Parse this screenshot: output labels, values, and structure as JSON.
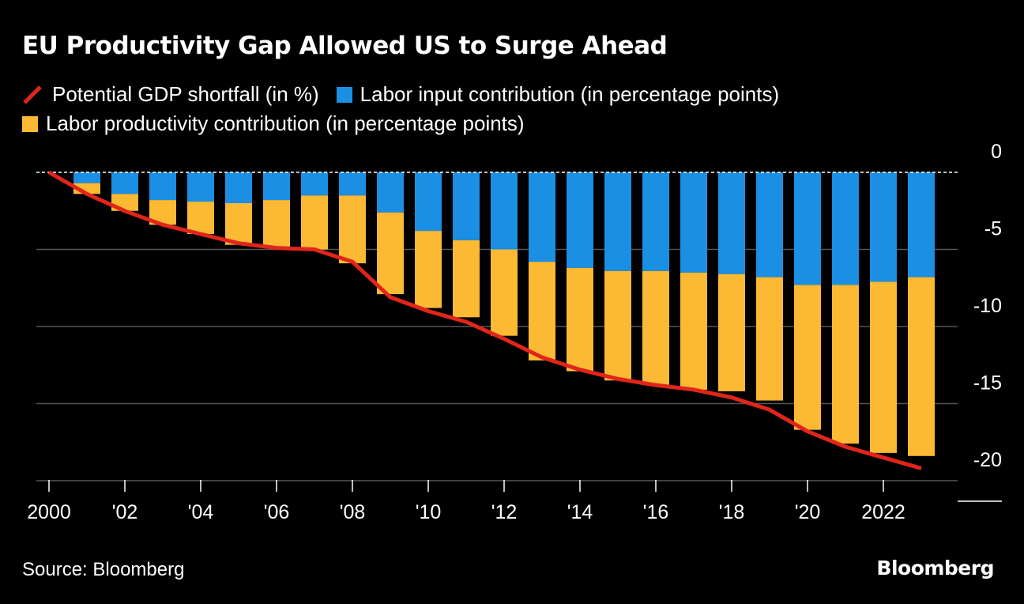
{
  "title": "EU Productivity Gap Allowed US to Surge Ahead",
  "legend": {
    "line": "Potential GDP shortfall (in %)",
    "blue": "Labor input contribution (in percentage points)",
    "yellow": "Labor productivity contribution (in percentage points)"
  },
  "source": "Source: Bloomberg",
  "brand": "Bloomberg",
  "colors": {
    "background": "#000000",
    "blue": "#1a8fe3",
    "yellow": "#fbb934",
    "line": "#e1251b",
    "grid": "#555555",
    "text": "#ffffff"
  },
  "chart_data": {
    "type": "bar",
    "stacked": true,
    "title": "EU Productivity Gap Allowed US to Surge Ahead",
    "x": [
      2000,
      2001,
      2002,
      2003,
      2004,
      2005,
      2006,
      2007,
      2008,
      2009,
      2010,
      2011,
      2012,
      2013,
      2014,
      2015,
      2016,
      2017,
      2018,
      2019,
      2020,
      2021,
      2022,
      2023
    ],
    "x_tick_labels": [
      {
        "x": 2000,
        "label": "2000"
      },
      {
        "x": 2002,
        "label": "'02"
      },
      {
        "x": 2004,
        "label": "'04"
      },
      {
        "x": 2006,
        "label": "'06"
      },
      {
        "x": 2008,
        "label": "'08"
      },
      {
        "x": 2010,
        "label": "'10"
      },
      {
        "x": 2012,
        "label": "'12"
      },
      {
        "x": 2014,
        "label": "'14"
      },
      {
        "x": 2016,
        "label": "'16"
      },
      {
        "x": 2018,
        "label": "'18"
      },
      {
        "x": 2020,
        "label": "'20"
      },
      {
        "x": 2022,
        "label": "2022"
      }
    ],
    "series": [
      {
        "name": "Labor input contribution (in percentage points)",
        "kind": "bar",
        "color": "#1a8fe3",
        "values": [
          0,
          -0.7,
          -1.4,
          -1.8,
          -1.9,
          -2.0,
          -1.8,
          -1.5,
          -1.5,
          -2.6,
          -3.8,
          -4.4,
          -5.0,
          -5.8,
          -6.2,
          -6.4,
          -6.4,
          -6.5,
          -6.6,
          -6.8,
          -7.3,
          -7.3,
          -7.1,
          -6.8
        ]
      },
      {
        "name": "Labor productivity contribution (in percentage points)",
        "kind": "bar",
        "color": "#fbb934",
        "values": [
          0,
          -0.7,
          -1.1,
          -1.6,
          -2.1,
          -2.7,
          -3.1,
          -3.5,
          -4.4,
          -5.3,
          -5.0,
          -5.0,
          -5.6,
          -6.4,
          -6.7,
          -7.1,
          -7.4,
          -7.6,
          -7.6,
          -8.0,
          -9.4,
          -10.3,
          -11.1,
          -11.6
        ]
      },
      {
        "name": "Potential GDP shortfall (in %)",
        "kind": "line",
        "color": "#e1251b",
        "values": [
          0,
          -1.4,
          -2.5,
          -3.4,
          -4.0,
          -4.6,
          -4.9,
          -5.0,
          -5.8,
          -8.1,
          -9.0,
          -9.7,
          -10.8,
          -12.0,
          -12.8,
          -13.4,
          -13.8,
          -14.1,
          -14.6,
          -15.4,
          -16.8,
          -17.8,
          -18.5,
          -19.2
        ]
      }
    ],
    "y_ticks": [
      0,
      -5,
      -10,
      -15,
      -20
    ],
    "ylim": [
      -20,
      0
    ],
    "xlabel": "",
    "ylabel": ""
  }
}
